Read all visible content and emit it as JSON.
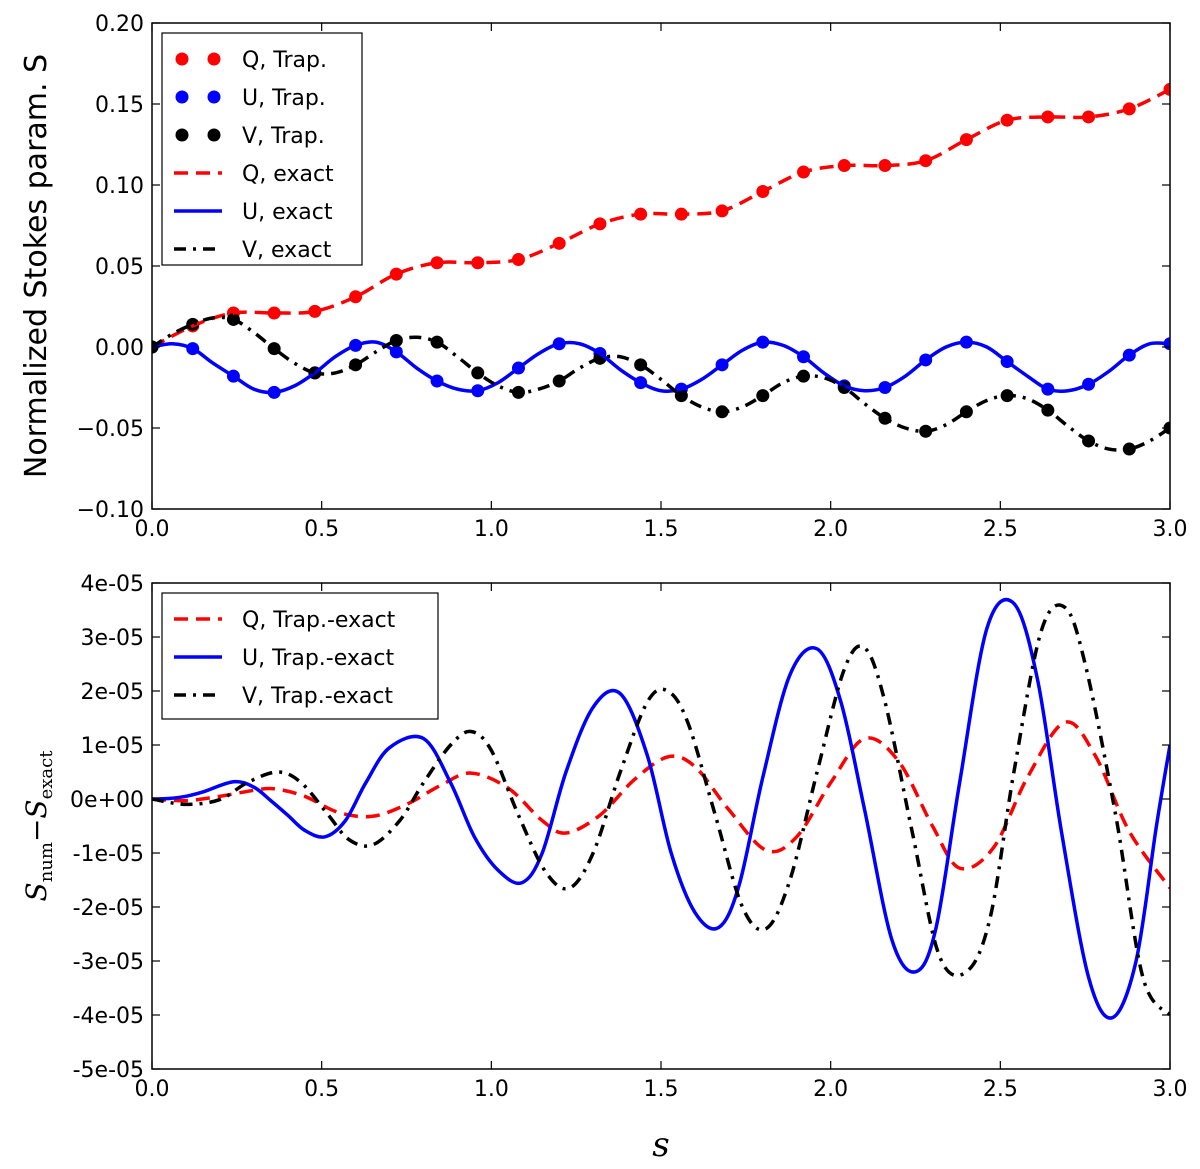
{
  "chart_data": [
    {
      "type": "line",
      "ylabel": "Normalized Stokes param. S",
      "xlim": [
        0,
        3
      ],
      "ylim": [
        -0.1,
        0.2
      ],
      "xticks": [
        "0.0",
        "0.5",
        "1.0",
        "1.5",
        "2.0",
        "2.5",
        "3.0"
      ],
      "yticks": [
        "−0.10",
        "−0.05",
        "0.00",
        "0.05",
        "0.10",
        "0.15",
        "0.20"
      ],
      "xtick_values": [
        0,
        0.5,
        1,
        1.5,
        2,
        2.5,
        3
      ],
      "ytick_values": [
        -0.1,
        -0.05,
        0,
        0.05,
        0.1,
        0.15,
        0.2
      ],
      "legend_position": "top-left",
      "series": [
        {
          "name": "Q, Trap.",
          "style": "markers",
          "color": "#ff0000",
          "x": [
            0.0,
            0.12,
            0.24,
            0.36,
            0.48,
            0.6,
            0.72,
            0.84,
            0.96,
            1.08,
            1.2,
            1.32,
            1.44,
            1.56,
            1.68,
            1.8,
            1.92,
            2.04,
            2.16,
            2.28,
            2.4,
            2.52,
            2.64,
            2.76,
            2.88,
            3.0
          ],
          "y": [
            0.0,
            0.013,
            0.021,
            0.021,
            0.022,
            0.031,
            0.045,
            0.052,
            0.052,
            0.054,
            0.064,
            0.076,
            0.082,
            0.082,
            0.084,
            0.096,
            0.108,
            0.112,
            0.112,
            0.115,
            0.128,
            0.14,
            0.142,
            0.142,
            0.147,
            0.159
          ]
        },
        {
          "name": "U, Trap.",
          "style": "markers",
          "color": "#0000ff",
          "x": [
            0.0,
            0.12,
            0.24,
            0.36,
            0.48,
            0.6,
            0.72,
            0.84,
            0.96,
            1.08,
            1.2,
            1.32,
            1.44,
            1.56,
            1.68,
            1.8,
            1.92,
            2.04,
            2.16,
            2.28,
            2.4,
            2.52,
            2.64,
            2.76,
            2.88,
            3.0
          ],
          "y": [
            0.0,
            -0.001,
            -0.018,
            -0.028,
            -0.016,
            0.001,
            -0.003,
            -0.021,
            -0.027,
            -0.013,
            0.002,
            -0.004,
            -0.022,
            -0.026,
            -0.011,
            0.003,
            -0.006,
            -0.024,
            -0.025,
            -0.008,
            0.003,
            -0.009,
            -0.026,
            -0.023,
            -0.005,
            0.002
          ]
        },
        {
          "name": "V, Trap.",
          "style": "markers",
          "color": "#000000",
          "x": [
            0.0,
            0.12,
            0.24,
            0.36,
            0.48,
            0.6,
            0.72,
            0.84,
            0.96,
            1.08,
            1.2,
            1.32,
            1.44,
            1.56,
            1.68,
            1.8,
            1.92,
            2.04,
            2.16,
            2.28,
            2.4,
            2.52,
            2.64,
            2.76,
            2.88,
            3.0
          ],
          "y": [
            0.0,
            0.014,
            0.017,
            -0.001,
            -0.016,
            -0.011,
            0.004,
            0.003,
            -0.016,
            -0.028,
            -0.021,
            -0.007,
            -0.011,
            -0.03,
            -0.04,
            -0.03,
            -0.018,
            -0.025,
            -0.044,
            -0.052,
            -0.04,
            -0.03,
            -0.039,
            -0.058,
            -0.063,
            -0.05
          ]
        },
        {
          "name": "Q, exact",
          "style": "dashed",
          "color": "#ff0000",
          "x": [
            0.0,
            0.12,
            0.24,
            0.36,
            0.48,
            0.6,
            0.72,
            0.84,
            0.96,
            1.08,
            1.2,
            1.32,
            1.44,
            1.56,
            1.68,
            1.8,
            1.92,
            2.04,
            2.16,
            2.28,
            2.4,
            2.52,
            2.64,
            2.76,
            2.88,
            3.0
          ],
          "y": [
            0.0,
            0.013,
            0.021,
            0.021,
            0.022,
            0.031,
            0.045,
            0.052,
            0.052,
            0.054,
            0.064,
            0.076,
            0.082,
            0.082,
            0.084,
            0.096,
            0.108,
            0.112,
            0.112,
            0.115,
            0.128,
            0.14,
            0.142,
            0.142,
            0.147,
            0.159
          ]
        },
        {
          "name": "U, exact",
          "style": "solid",
          "color": "#0000ff",
          "x": [
            0.0,
            0.06,
            0.12,
            0.18,
            0.24,
            0.3,
            0.36,
            0.42,
            0.48,
            0.54,
            0.6,
            0.66,
            0.72,
            0.78,
            0.84,
            0.9,
            0.96,
            1.02,
            1.08,
            1.14,
            1.2,
            1.26,
            1.32,
            1.38,
            1.44,
            1.5,
            1.56,
            1.62,
            1.68,
            1.74,
            1.8,
            1.86,
            1.92,
            1.98,
            2.04,
            2.1,
            2.16,
            2.22,
            2.28,
            2.34,
            2.4,
            2.46,
            2.52,
            2.58,
            2.64,
            2.7,
            2.76,
            2.82,
            2.88,
            2.94,
            3.0
          ],
          "y": [
            0.0,
            0.002,
            -0.001,
            -0.01,
            -0.018,
            -0.026,
            -0.028,
            -0.024,
            -0.016,
            -0.006,
            0.001,
            0.003,
            -0.003,
            -0.013,
            -0.021,
            -0.026,
            -0.027,
            -0.022,
            -0.013,
            -0.004,
            0.002,
            0.002,
            -0.004,
            -0.014,
            -0.022,
            -0.027,
            -0.026,
            -0.02,
            -0.011,
            -0.002,
            0.003,
            0.001,
            -0.006,
            -0.016,
            -0.024,
            -0.027,
            -0.025,
            -0.018,
            -0.008,
            0.0,
            0.003,
            0.0,
            -0.009,
            -0.018,
            -0.026,
            -0.027,
            -0.023,
            -0.015,
            -0.005,
            0.002,
            0.002
          ]
        },
        {
          "name": "V, exact",
          "style": "dashdot",
          "color": "#000000",
          "x": [
            0.0,
            0.06,
            0.12,
            0.18,
            0.24,
            0.3,
            0.36,
            0.42,
            0.48,
            0.54,
            0.6,
            0.66,
            0.72,
            0.78,
            0.84,
            0.9,
            0.96,
            1.02,
            1.08,
            1.14,
            1.2,
            1.26,
            1.32,
            1.38,
            1.44,
            1.5,
            1.56,
            1.62,
            1.68,
            1.74,
            1.8,
            1.86,
            1.92,
            1.98,
            2.04,
            2.1,
            2.16,
            2.22,
            2.28,
            2.34,
            2.4,
            2.46,
            2.52,
            2.58,
            2.64,
            2.7,
            2.76,
            2.82,
            2.88,
            2.94,
            3.0
          ],
          "y": [
            0.0,
            0.008,
            0.014,
            0.018,
            0.017,
            0.009,
            -0.001,
            -0.01,
            -0.016,
            -0.016,
            -0.011,
            -0.003,
            0.004,
            0.006,
            0.003,
            -0.006,
            -0.016,
            -0.024,
            -0.028,
            -0.026,
            -0.021,
            -0.013,
            -0.007,
            -0.006,
            -0.011,
            -0.02,
            -0.03,
            -0.037,
            -0.04,
            -0.037,
            -0.03,
            -0.022,
            -0.018,
            -0.019,
            -0.025,
            -0.035,
            -0.044,
            -0.05,
            -0.052,
            -0.048,
            -0.04,
            -0.033,
            -0.03,
            -0.032,
            -0.039,
            -0.049,
            -0.058,
            -0.063,
            -0.063,
            -0.058,
            -0.05
          ]
        }
      ]
    },
    {
      "type": "line",
      "ylabel": "S_num − S_exact",
      "ylabel_main": "S",
      "ylabel_sub1": "num",
      "ylabel_minus": "−",
      "ylabel_sub2": "exact",
      "xlabel": "s",
      "xlim": [
        0,
        3
      ],
      "ylim": [
        -5e-05,
        4e-05
      ],
      "xticks": [
        "0.0",
        "0.5",
        "1.0",
        "1.5",
        "2.0",
        "2.5",
        "3.0"
      ],
      "yticks": [
        "-5e-05",
        "-4e-05",
        "-3e-05",
        "-2e-05",
        "-1e-05",
        "0e+00",
        "1e-05",
        "2e-05",
        "3e-05",
        "4e-05"
      ],
      "xtick_values": [
        0,
        0.5,
        1,
        1.5,
        2,
        2.5,
        3
      ],
      "ytick_values": [
        -5e-05,
        -4e-05,
        -3e-05,
        -2e-05,
        -1e-05,
        0,
        1e-05,
        2e-05,
        3e-05,
        4e-05
      ],
      "legend_position": "top-left",
      "series": [
        {
          "name": "Q, Trap.-exact",
          "style": "dashed",
          "color": "#ff0000",
          "x": [
            0.0,
            0.1,
            0.2,
            0.3,
            0.36,
            0.45,
            0.55,
            0.65,
            0.75,
            0.85,
            0.94,
            1.05,
            1.15,
            1.22,
            1.32,
            1.42,
            1.52,
            1.6,
            1.7,
            1.81,
            1.9,
            2.0,
            2.1,
            2.2,
            2.3,
            2.38,
            2.48,
            2.58,
            2.69,
            2.78,
            2.88,
            3.0
          ],
          "y": [
            0.0,
            -3e-07,
            5e-07,
            1.6e-06,
            1.9e-06,
            5e-07,
            -2.5e-06,
            -3.2e-06,
            -1e-06,
            2.5e-06,
            4.8e-06,
            2e-06,
            -4e-06,
            -6.3e-06,
            -3e-06,
            3.5e-06,
            7.8e-06,
            6e-06,
            -2e-06,
            -9.5e-06,
            -7e-06,
            3e-06,
            1.12e-05,
            7e-06,
            -5e-06,
            -1.28e-05,
            -9e-06,
            4e-06,
            1.42e-05,
            8e-06,
            -6e-06,
            -1.65e-05
          ]
        },
        {
          "name": "U, Trap.-exact",
          "style": "solid",
          "color": "#0000ff",
          "x": [
            0.0,
            0.05,
            0.1,
            0.15,
            0.24,
            0.3,
            0.35,
            0.4,
            0.45,
            0.51,
            0.57,
            0.63,
            0.7,
            0.8,
            0.88,
            0.95,
            1.02,
            1.09,
            1.15,
            1.22,
            1.3,
            1.38,
            1.46,
            1.53,
            1.6,
            1.67,
            1.73,
            1.8,
            1.88,
            1.96,
            2.03,
            2.1,
            2.18,
            2.25,
            2.31,
            2.38,
            2.46,
            2.54,
            2.61,
            2.68,
            2.76,
            2.83,
            2.9,
            2.96,
            3.0
          ],
          "y": [
            0.0,
            1e-07,
            5e-07,
            1.3e-06,
            3.2e-06,
            2.2e-06,
            -3e-07,
            -3e-06,
            -5.8e-06,
            -7e-06,
            -4e-06,
            3e-06,
            9.5e-06,
            1.12e-05,
            3e-06,
            -7e-06,
            -1.32e-05,
            -1.55e-05,
            -1e-05,
            5e-06,
            1.7e-05,
            1.95e-05,
            8e-06,
            -1e-05,
            -2.1e-05,
            -2.38e-05,
            -1.6e-05,
            4e-06,
            2.3e-05,
            2.78e-05,
            1.8e-05,
            -2e-06,
            -2.6e-05,
            -3.2e-05,
            -2.4e-05,
            3e-06,
            3.15e-05,
            3.62e-05,
            2.2e-05,
            -6e-06,
            -3.3e-05,
            -4.05e-05,
            -3e-05,
            -5e-06,
            1e-05
          ]
        },
        {
          "name": "V, Trap.-exact",
          "style": "dashdot",
          "color": "#000000",
          "x": [
            0.0,
            0.1,
            0.2,
            0.28,
            0.37,
            0.44,
            0.52,
            0.58,
            0.65,
            0.73,
            0.8,
            0.88,
            0.94,
            1.0,
            1.08,
            1.16,
            1.23,
            1.3,
            1.38,
            1.46,
            1.52,
            1.58,
            1.66,
            1.74,
            1.81,
            1.88,
            1.96,
            2.04,
            2.1,
            2.16,
            2.24,
            2.32,
            2.4,
            2.47,
            2.54,
            2.62,
            2.69,
            2.75,
            2.84,
            2.92,
            3.0
          ],
          "y": [
            0.0,
            -1e-06,
            -1e-07,
            3e-06,
            5e-06,
            3e-06,
            -3e-06,
            -7.5e-06,
            -8.5e-06,
            -4e-06,
            3e-06,
            1e-05,
            1.25e-05,
            9e-06,
            -3e-06,
            -1.35e-05,
            -1.65e-05,
            -1e-05,
            5e-06,
            1.8e-05,
            2e-05,
            1.4e-05,
            -3e-06,
            -2e-05,
            -2.4e-05,
            -1.5e-05,
            5e-06,
            2.4e-05,
            2.8e-05,
            1.8e-05,
            -6e-06,
            -2.9e-05,
            -3.2e-05,
            -2.2e-05,
            5e-06,
            3.1e-05,
            3.55e-05,
            2.5e-05,
            -3e-06,
            -3.3e-05,
            -4e-05
          ]
        }
      ]
    }
  ]
}
